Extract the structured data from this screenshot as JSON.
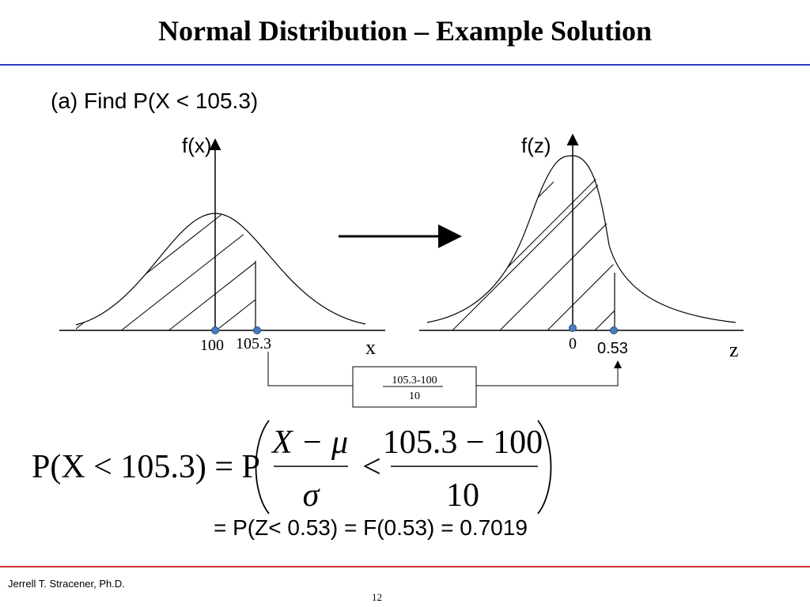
{
  "slide": {
    "title": "Normal Distribution – Example Solution",
    "subtitle": "(a) Find P(X < 105.3)",
    "left_plot": {
      "ylabel": "f(x)",
      "xlabel": "x",
      "ticks": [
        "100",
        "105.3"
      ]
    },
    "right_plot": {
      "ylabel": "f(z)",
      "xlabel": "z",
      "ticks": [
        "0",
        "0.53"
      ]
    },
    "transform_box": {
      "numerator": "105.3-100",
      "denominator": "10"
    },
    "equation": {
      "lhs": "P(X < 105.3) = P",
      "frac1_num": "X − μ",
      "frac1_den": "σ",
      "less": "<",
      "frac2_num": "105.3 − 100",
      "frac2_den": "10"
    },
    "result": "= P(Z< 0.53) = F(0.53) =  0.7019",
    "footer": {
      "author": "Jerrell T. Stracener, Ph.D.",
      "page": "12"
    }
  }
}
